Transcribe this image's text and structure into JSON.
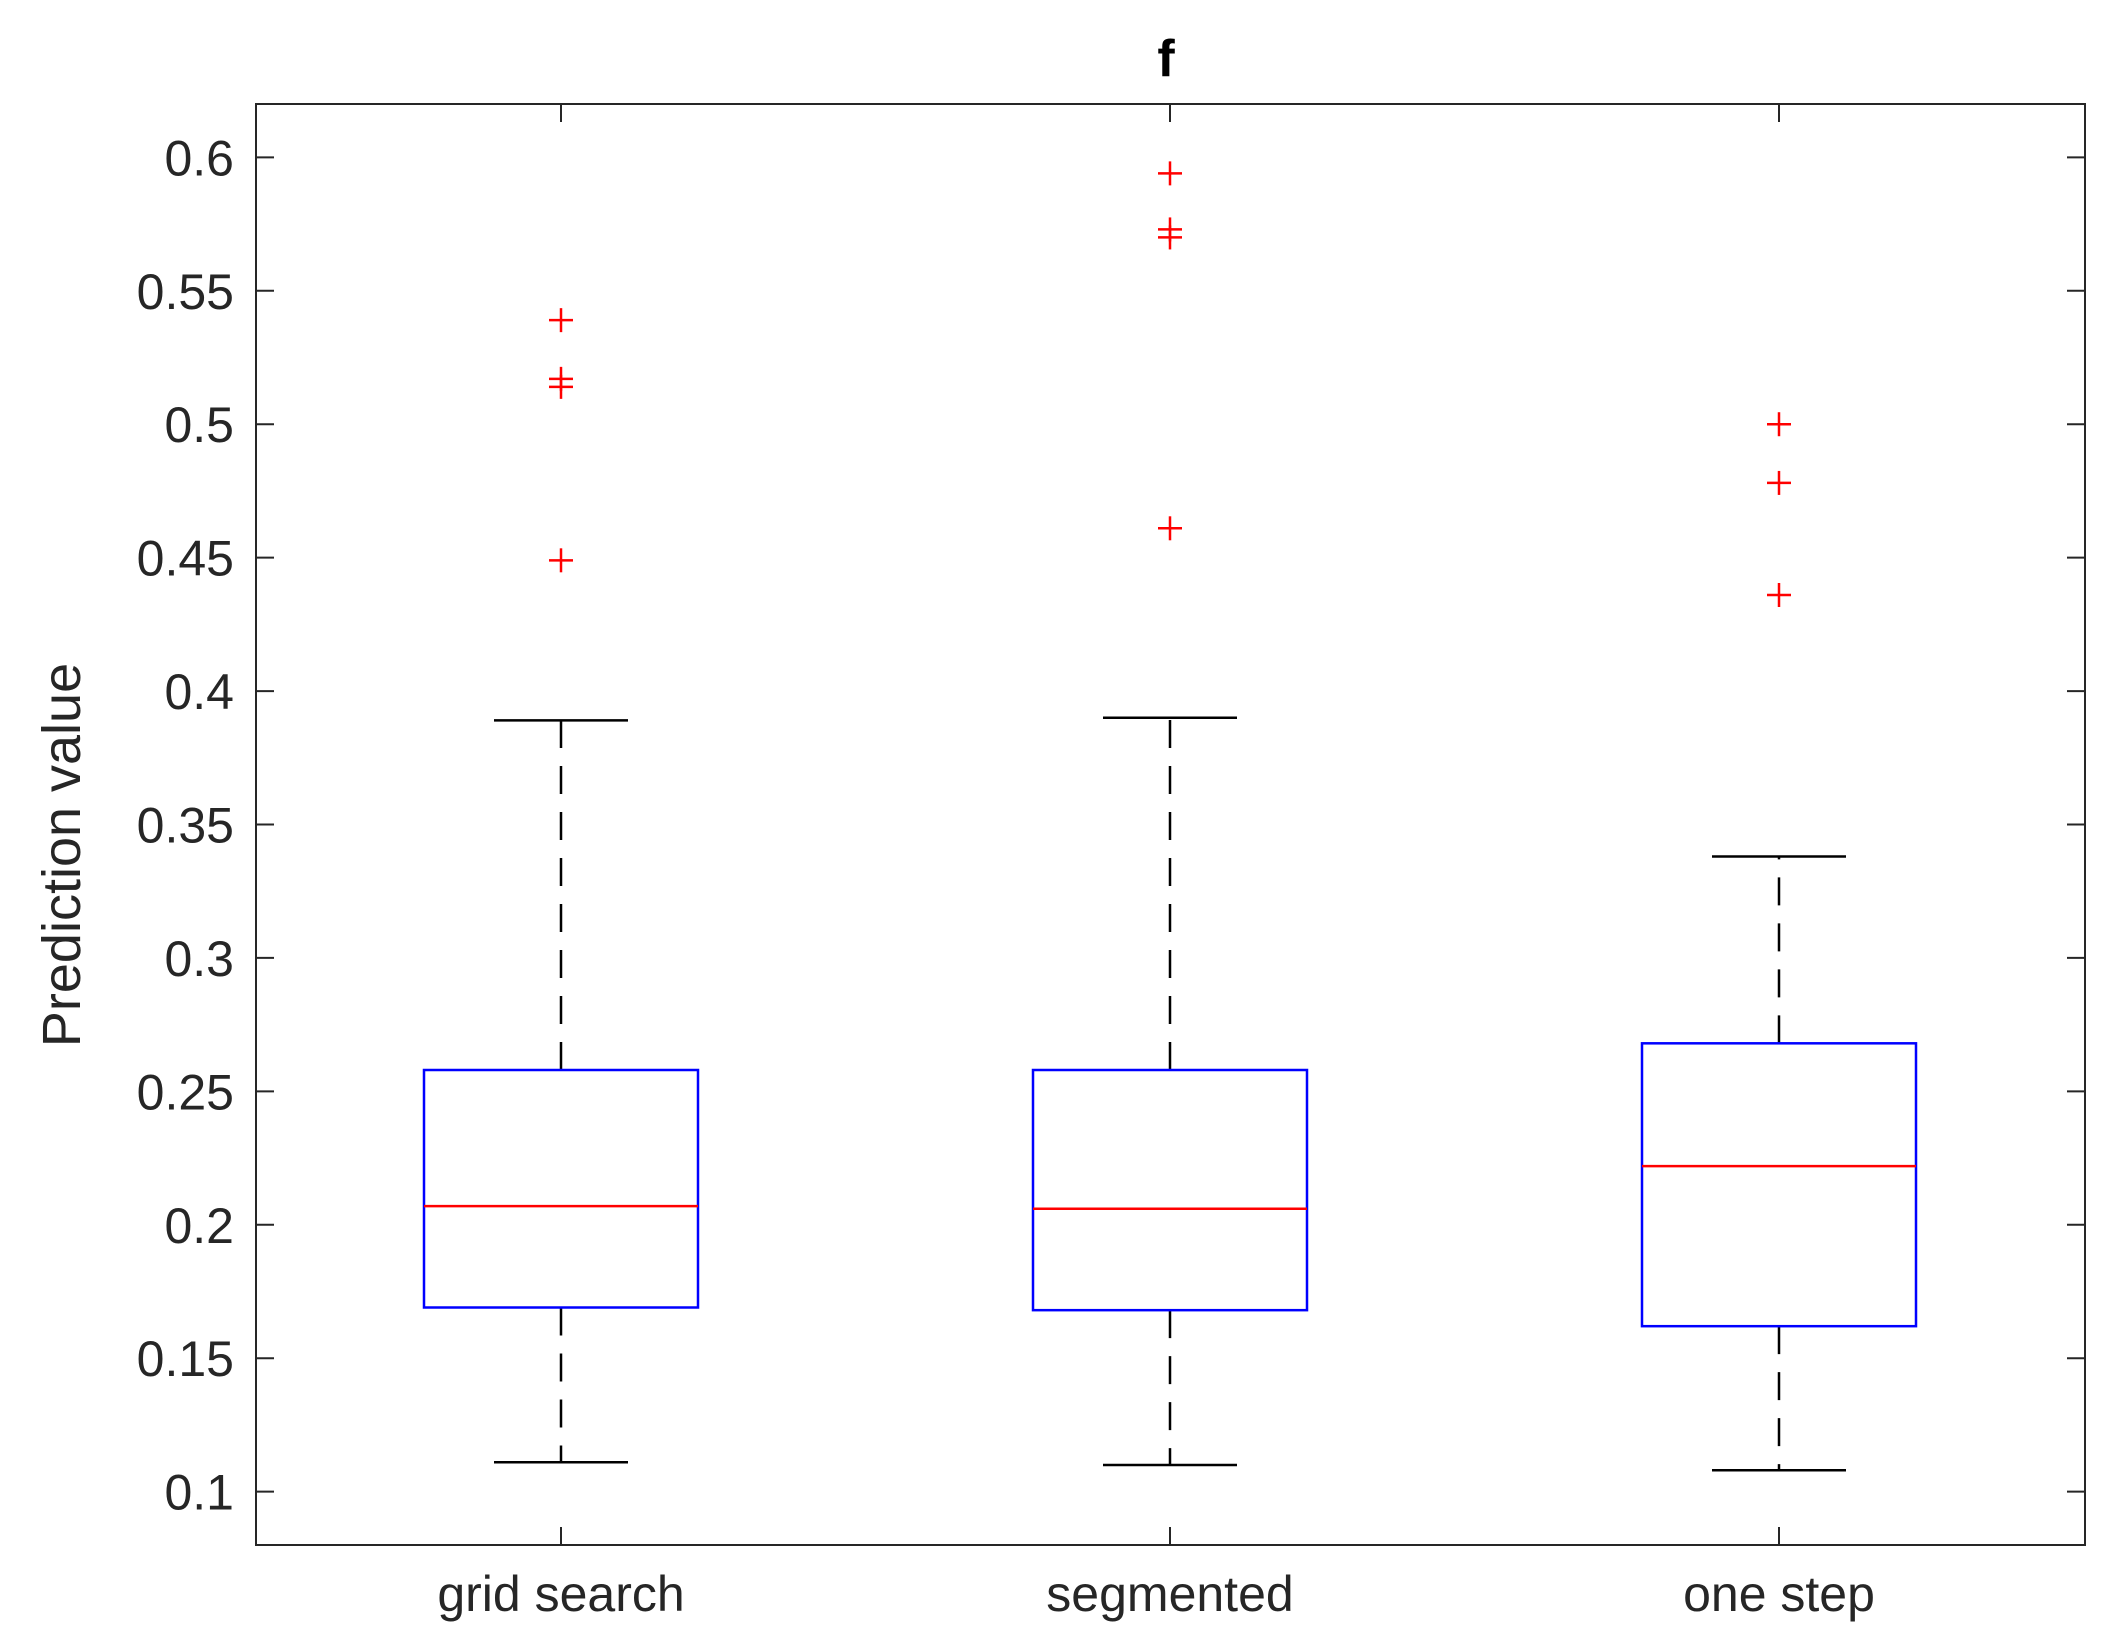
{
  "chart_data": {
    "type": "boxplot",
    "title": "f",
    "xlabel": "",
    "ylabel": "Prediction value",
    "ylim": [
      0.08,
      0.62
    ],
    "yticks": [
      0.1,
      0.15,
      0.2,
      0.25,
      0.3,
      0.35,
      0.4,
      0.45,
      0.5,
      0.55,
      0.6
    ],
    "ytick_labels": [
      "0.1",
      "0.15",
      "0.2",
      "0.25",
      "0.3",
      "0.35",
      "0.4",
      "0.45",
      "0.5",
      "0.55",
      "0.6"
    ],
    "categories": [
      "grid search",
      "segmented",
      "one step"
    ],
    "grid": false,
    "boxes": [
      {
        "name": "grid search",
        "whisker_low": 0.111,
        "q1": 0.169,
        "median": 0.207,
        "q3": 0.258,
        "whisker_high": 0.389,
        "outliers": [
          0.449,
          0.514,
          0.517,
          0.539
        ]
      },
      {
        "name": "segmented",
        "whisker_low": 0.11,
        "q1": 0.168,
        "median": 0.206,
        "q3": 0.258,
        "whisker_high": 0.39,
        "outliers": [
          0.461,
          0.57,
          0.573,
          0.594
        ]
      },
      {
        "name": "one step",
        "whisker_low": 0.108,
        "q1": 0.162,
        "median": 0.222,
        "q3": 0.268,
        "whisker_high": 0.338,
        "outliers": [
          0.436,
          0.478,
          0.5
        ]
      }
    ],
    "colors": {
      "box": "#0000ff",
      "median": "#ff0000",
      "whisker": "#000000",
      "outlier": "#ff0000",
      "axis": "#262626",
      "text": "#262626"
    }
  }
}
